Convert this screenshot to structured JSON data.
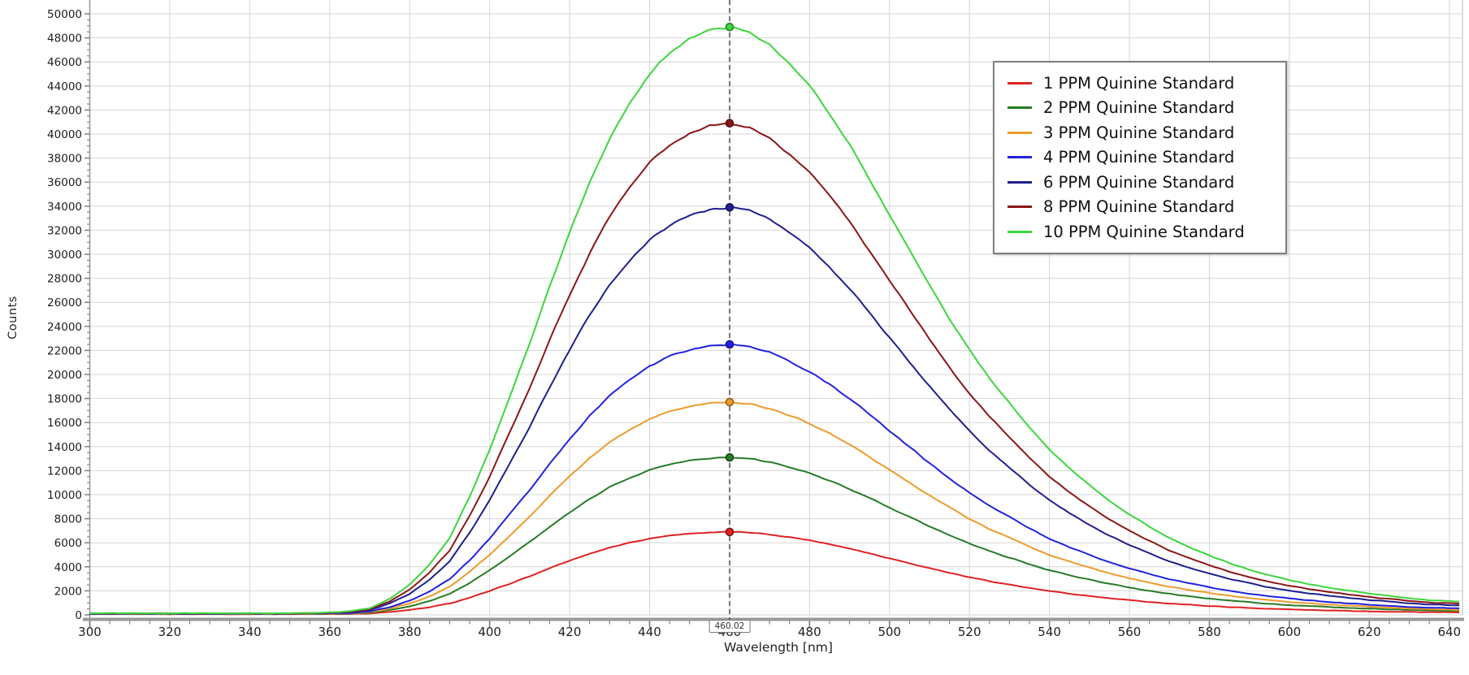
{
  "chart_data": {
    "type": "line",
    "title": "",
    "xlabel": "Wavelength [nm]",
    "ylabel": "Counts",
    "xlim": [
      300,
      643.3
    ],
    "ylim": [
      0,
      51150
    ],
    "x_major_tick_step": 20,
    "x_minor_tick_step": 5,
    "x_tick_labels": [
      "300",
      "320",
      "340",
      "360",
      "380",
      "400",
      "420",
      "440",
      "460",
      "480",
      "500",
      "520",
      "540",
      "560",
      "580",
      "600",
      "620",
      "640"
    ],
    "y_major_tick_step": 2000,
    "y_minor_tick_step": 500,
    "y_tick_labels": [
      "0",
      "2000",
      "4000",
      "6000",
      "8000",
      "10000",
      "12000",
      "14000",
      "16000",
      "18000",
      "20000",
      "22000",
      "24000",
      "26000",
      "28000",
      "30000",
      "32000",
      "34000",
      "36000",
      "38000",
      "40000",
      "42000",
      "44000",
      "46000",
      "48000",
      "50000"
    ],
    "grid": true,
    "legend_position": "upper-right-inside",
    "cursor": {
      "x_nm": 460.02,
      "label": "460.02"
    },
    "baseline_counts": 60,
    "noise_amplitude_counts": 25,
    "emission_profile": {
      "comment_visible": "",
      "wavelengths_nm": [
        300,
        310,
        320,
        330,
        340,
        350,
        355,
        360,
        365,
        370,
        375,
        380,
        385,
        390,
        395,
        400,
        405,
        410,
        415,
        420,
        425,
        430,
        435,
        440,
        445,
        450,
        455,
        460,
        465,
        470,
        475,
        480,
        485,
        490,
        495,
        500,
        505,
        510,
        515,
        520,
        525,
        530,
        535,
        540,
        545,
        550,
        555,
        560,
        565,
        570,
        575,
        580,
        585,
        590,
        595,
        600,
        605,
        610,
        615,
        620,
        625,
        630,
        635,
        640,
        643
      ],
      "normalized": [
        0.0015,
        0.0015,
        0.0015,
        0.0015,
        0.0015,
        0.0015,
        0.002,
        0.003,
        0.005,
        0.01,
        0.026,
        0.05,
        0.085,
        0.13,
        0.2,
        0.28,
        0.37,
        0.46,
        0.558,
        0.65,
        0.735,
        0.81,
        0.87,
        0.92,
        0.956,
        0.98,
        0.995,
        1.0,
        0.992,
        0.97,
        0.937,
        0.9,
        0.852,
        0.8,
        0.74,
        0.68,
        0.62,
        0.56,
        0.503,
        0.45,
        0.402,
        0.36,
        0.318,
        0.28,
        0.248,
        0.22,
        0.193,
        0.17,
        0.149,
        0.13,
        0.114,
        0.1,
        0.087,
        0.076,
        0.066,
        0.058,
        0.051,
        0.045,
        0.04,
        0.035,
        0.031,
        0.027,
        0.024,
        0.022,
        0.021
      ],
      "peak_wavelength_nm": 460
    },
    "series": [
      {
        "label": "1 PPM Quinine Standard",
        "concentration_ppm": 1,
        "color": "#e02222",
        "counts_at_cursor": 6900
      },
      {
        "label": "2 PPM Quinine Standard",
        "concentration_ppm": 2,
        "color": "#257c25",
        "counts_at_cursor": 13100
      },
      {
        "label": "3 PPM Quinine Standard",
        "concentration_ppm": 3,
        "color": "#ef9b2d",
        "counts_at_cursor": 17700
      },
      {
        "label": "4 PPM Quinine Standard",
        "concentration_ppm": 4,
        "color": "#2222dd",
        "counts_at_cursor": 22500
      },
      {
        "label": "6 PPM Quinine Standard",
        "concentration_ppm": 6,
        "color": "#1f1f8f",
        "counts_at_cursor": 33900
      },
      {
        "label": "8 PPM Quinine Standard",
        "concentration_ppm": 8,
        "color": "#8b1717",
        "counts_at_cursor": 40900
      },
      {
        "label": "10 PPM Quinine Standard",
        "concentration_ppm": 10,
        "color": "#3cd63c",
        "counts_at_cursor": 48900
      }
    ],
    "colors": {
      "grid": "#d6d6d6",
      "plot_border": "#c4c4c4",
      "axis_line": "#9a9a9a",
      "tick": "#787878",
      "tick_label": "#1e1e1e",
      "cursor_line": "#555555",
      "background": "#ffffff"
    }
  }
}
